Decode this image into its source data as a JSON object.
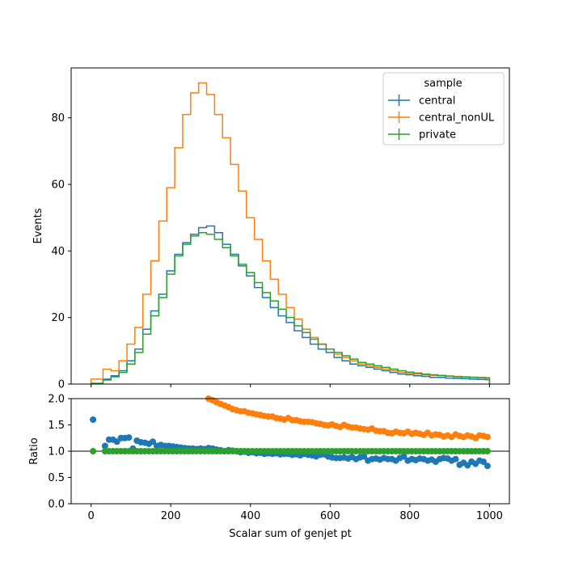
{
  "chart_data": [
    {
      "type": "line",
      "drawstyle": "steps",
      "xlabel": "",
      "ylabel": "Events",
      "xlim": [
        -50,
        1050
      ],
      "ylim": [
        0,
        95
      ],
      "x_ticks": [
        0,
        200,
        400,
        600,
        800,
        1000
      ],
      "y_ticks": [
        0,
        20,
        40,
        60,
        80
      ],
      "y_tick_labels": [
        "0",
        "20",
        "40",
        "60",
        "80"
      ],
      "legend": {
        "title": "sample",
        "location": "upper right",
        "entries": [
          "central",
          "central_nonUL",
          "private"
        ]
      },
      "x_edges": [
        0,
        30,
        50,
        70,
        90,
        110,
        130,
        150,
        170,
        190,
        210,
        230,
        250,
        270,
        290,
        310,
        330,
        350,
        370,
        390,
        410,
        430,
        450,
        470,
        490,
        510,
        530,
        550,
        570,
        590,
        610,
        630,
        650,
        670,
        690,
        710,
        730,
        750,
        770,
        790,
        810,
        830,
        850,
        870,
        890,
        910,
        930,
        950,
        970,
        990,
        1000
      ],
      "series": [
        {
          "name": "central",
          "color": "#1f77b4",
          "values": [
            0.2,
            1.5,
            2.5,
            4,
            7,
            10.5,
            16.5,
            22,
            27,
            34,
            39,
            42.5,
            45,
            47,
            47.5,
            45.5,
            42,
            39,
            35.5,
            32.5,
            29,
            26,
            23,
            20.5,
            18.5,
            16,
            14,
            12,
            10.5,
            9.5,
            8,
            7,
            6,
            5.5,
            5,
            4.5,
            4,
            3.5,
            3,
            2.8,
            2.5,
            2.3,
            2,
            2,
            1.8,
            1.7,
            1.6,
            1.5,
            1.4,
            1.3
          ]
        },
        {
          "name": "central_nonUL",
          "color": "#ff7f0e",
          "values": [
            1.5,
            4.5,
            4,
            7,
            12,
            17,
            27,
            37,
            49,
            59,
            71,
            81,
            87.5,
            90.5,
            87,
            81,
            74,
            66,
            58,
            50,
            43.5,
            37,
            31.5,
            27,
            23,
            19.5,
            16.5,
            14,
            12,
            10.5,
            9,
            8,
            7,
            6,
            5.5,
            5,
            4.5,
            4,
            3.5,
            3.2,
            3,
            2.8,
            2.6,
            2.5,
            2.4,
            2.3,
            2.2,
            2.1,
            2,
            1.9
          ]
        },
        {
          "name": "private",
          "color": "#2ca02c",
          "values": [
            0.2,
            1.2,
            2.2,
            3.5,
            6,
            9.5,
            15,
            20.5,
            26,
            33,
            38.5,
            42,
            44.5,
            45.5,
            45,
            43.5,
            41,
            38.5,
            36,
            33.5,
            30.5,
            27.5,
            25,
            22.5,
            20,
            17.5,
            15.5,
            13.5,
            12,
            10.5,
            9.5,
            8.5,
            7.5,
            6.5,
            6,
            5.5,
            5,
            4.5,
            4,
            3.6,
            3.3,
            3,
            2.8,
            2.6,
            2.4,
            2.2,
            2.1,
            2,
            1.9,
            1.8
          ]
        }
      ]
    },
    {
      "type": "scatter",
      "xlabel": "Scalar sum of genjet pt",
      "ylabel": "Ratio",
      "xlim": [
        -50,
        1050
      ],
      "ylim": [
        0,
        2
      ],
      "x_ticks": [
        0,
        200,
        400,
        600,
        800,
        1000
      ],
      "x_tick_labels": [
        "0",
        "200",
        "400",
        "600",
        "800",
        "1000"
      ],
      "y_ticks": [
        0,
        0.5,
        1,
        1.5,
        2
      ],
      "y_tick_labels": [
        "0.0",
        "0.5",
        "1.0",
        "1.5",
        "2.0"
      ],
      "reference_line": 1.0,
      "x": [
        5,
        35,
        45,
        55,
        65,
        75,
        85,
        95,
        105,
        115,
        125,
        135,
        145,
        155,
        165,
        175,
        185,
        195,
        205,
        215,
        225,
        235,
        245,
        255,
        265,
        275,
        285,
        295,
        305,
        315,
        325,
        335,
        345,
        355,
        365,
        375,
        385,
        395,
        405,
        415,
        425,
        435,
        445,
        455,
        465,
        475,
        485,
        495,
        505,
        515,
        525,
        535,
        545,
        555,
        565,
        575,
        585,
        595,
        605,
        615,
        625,
        635,
        645,
        655,
        665,
        675,
        685,
        695,
        705,
        715,
        725,
        735,
        745,
        755,
        765,
        775,
        785,
        795,
        805,
        815,
        825,
        835,
        845,
        855,
        865,
        875,
        885,
        895,
        905,
        915,
        925,
        935,
        945,
        955,
        965,
        975,
        985,
        995
      ],
      "series": [
        {
          "name": "central",
          "color": "#1f77b4",
          "values": [
            1.6,
            1.1,
            1.22,
            1.22,
            1.18,
            1.25,
            1.25,
            1.26,
            1.05,
            1.2,
            1.17,
            1.16,
            1.14,
            1.18,
            1.1,
            1.12,
            1.1,
            1.1,
            1.09,
            1.08,
            1.07,
            1.06,
            1.05,
            1.05,
            1.04,
            1.05,
            1.04,
            1.06,
            1.05,
            1.03,
            1.02,
            1.0,
            1.02,
            1.01,
            1.0,
            0.98,
            0.99,
            0.97,
            0.98,
            0.96,
            0.97,
            0.95,
            0.96,
            0.95,
            0.96,
            0.94,
            0.95,
            0.95,
            0.93,
            0.94,
            0.92,
            0.95,
            0.93,
            0.92,
            0.9,
            0.93,
            0.94,
            0.9,
            0.88,
            0.87,
            0.87,
            0.88,
            0.86,
            0.89,
            0.85,
            0.88,
            0.9,
            0.82,
            0.85,
            0.86,
            0.84,
            0.87,
            0.85,
            0.85,
            0.82,
            0.87,
            0.9,
            0.82,
            0.85,
            0.83,
            0.86,
            0.85,
            0.82,
            0.84,
            0.8,
            0.85,
            0.87,
            0.86,
            0.82,
            0.85,
            0.74,
            0.78,
            0.73,
            0.8,
            0.76,
            0.82,
            0.8,
            0.72
          ]
        },
        {
          "name": "central_nonUL",
          "color": "#ff7f0e",
          "values": [
            null,
            null,
            null,
            null,
            null,
            null,
            null,
            null,
            null,
            null,
            null,
            null,
            null,
            null,
            null,
            null,
            null,
            null,
            null,
            null,
            null,
            null,
            null,
            null,
            null,
            null,
            null,
            2.0,
            1.97,
            1.93,
            1.9,
            1.87,
            1.84,
            1.8,
            1.78,
            1.76,
            1.76,
            1.73,
            1.72,
            1.7,
            1.69,
            1.67,
            1.66,
            1.66,
            1.63,
            1.62,
            1.6,
            1.63,
            1.59,
            1.59,
            1.57,
            1.56,
            1.56,
            1.55,
            1.53,
            1.52,
            1.5,
            1.49,
            1.51,
            1.48,
            1.46,
            1.5,
            1.47,
            1.45,
            1.45,
            1.43,
            1.42,
            1.41,
            1.43,
            1.39,
            1.38,
            1.38,
            1.35,
            1.34,
            1.37,
            1.35,
            1.34,
            1.37,
            1.33,
            1.35,
            1.33,
            1.31,
            1.35,
            1.3,
            1.32,
            1.31,
            1.28,
            1.3,
            1.27,
            1.32,
            1.29,
            1.27,
            1.3,
            1.28,
            1.25,
            1.3,
            1.29,
            1.27
          ]
        },
        {
          "name": "private",
          "color": "#2ca02c",
          "values": [
            1,
            1,
            1,
            1,
            1,
            1,
            1,
            1,
            1,
            1,
            1,
            1,
            1,
            1,
            1,
            1,
            1,
            1,
            1,
            1,
            1,
            1,
            1,
            1,
            1,
            1,
            1,
            1,
            1,
            1,
            1,
            1,
            1,
            1,
            1,
            1,
            1,
            1,
            1,
            1,
            1,
            1,
            1,
            1,
            1,
            1,
            1,
            1,
            1,
            1,
            1,
            1,
            1,
            1,
            1,
            1,
            1,
            1,
            1,
            1,
            1,
            1,
            1,
            1,
            1,
            1,
            1,
            1,
            1,
            1,
            1,
            1,
            1,
            1,
            1,
            1,
            1,
            1,
            1,
            1,
            1,
            1,
            1,
            1,
            1,
            1,
            1,
            1,
            1,
            1,
            1,
            1,
            1,
            1,
            1,
            1,
            1,
            1
          ]
        }
      ]
    }
  ]
}
